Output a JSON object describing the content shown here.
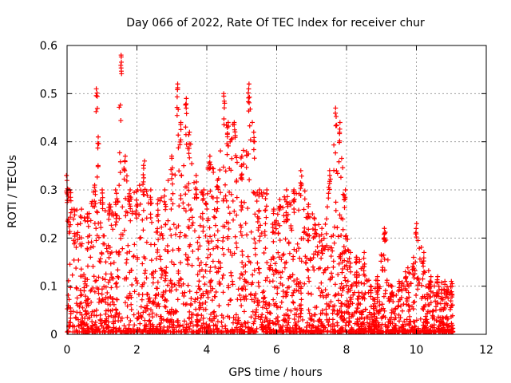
{
  "chart_data": {
    "type": "scatter",
    "title": "Day 066 of 2022, Rate Of TEC Index for receiver chur",
    "xlabel": "GPS time / hours",
    "ylabel": "ROTI / TECUs",
    "xlim": [
      0,
      12
    ],
    "ylim": [
      0,
      0.6
    ],
    "x_ticks": [
      "0",
      "2",
      "4",
      "6",
      "8",
      "10",
      "12"
    ],
    "y_ticks": [
      "0",
      "0.1",
      "0.2",
      "0.3",
      "0.4",
      "0.5",
      "0.6"
    ],
    "grid": true,
    "marker": "+",
    "series_color": "#ff0000",
    "x_range_of_data": [
      0,
      11.05
    ],
    "envelope_note": "dense cloud; upper envelope (hour, ROTI) listed below",
    "envelope": [
      [
        0.0,
        0.33
      ],
      [
        0.1,
        0.3
      ],
      [
        0.2,
        0.26
      ],
      [
        0.4,
        0.26
      ],
      [
        0.6,
        0.25
      ],
      [
        0.8,
        0.31
      ],
      [
        0.85,
        0.51
      ],
      [
        0.9,
        0.41
      ],
      [
        1.0,
        0.3
      ],
      [
        1.2,
        0.27
      ],
      [
        1.4,
        0.3
      ],
      [
        1.55,
        0.58
      ],
      [
        1.65,
        0.37
      ],
      [
        1.8,
        0.3
      ],
      [
        2.0,
        0.3
      ],
      [
        2.2,
        0.36
      ],
      [
        2.4,
        0.3
      ],
      [
        2.6,
        0.28
      ],
      [
        2.8,
        0.3
      ],
      [
        3.0,
        0.37
      ],
      [
        3.15,
        0.52
      ],
      [
        3.25,
        0.44
      ],
      [
        3.4,
        0.49
      ],
      [
        3.5,
        0.42
      ],
      [
        3.7,
        0.33
      ],
      [
        3.9,
        0.3
      ],
      [
        4.1,
        0.37
      ],
      [
        4.3,
        0.32
      ],
      [
        4.5,
        0.5
      ],
      [
        4.6,
        0.44
      ],
      [
        4.8,
        0.44
      ],
      [
        5.0,
        0.37
      ],
      [
        5.2,
        0.52
      ],
      [
        5.35,
        0.42
      ],
      [
        5.5,
        0.3
      ],
      [
        5.7,
        0.3
      ],
      [
        5.9,
        0.26
      ],
      [
        6.1,
        0.28
      ],
      [
        6.3,
        0.3
      ],
      [
        6.5,
        0.3
      ],
      [
        6.7,
        0.34
      ],
      [
        6.9,
        0.27
      ],
      [
        7.1,
        0.24
      ],
      [
        7.3,
        0.22
      ],
      [
        7.5,
        0.33
      ],
      [
        7.7,
        0.47
      ],
      [
        7.8,
        0.44
      ],
      [
        7.95,
        0.3
      ],
      [
        8.1,
        0.17
      ],
      [
        8.3,
        0.16
      ],
      [
        8.5,
        0.17
      ],
      [
        8.7,
        0.1
      ],
      [
        8.9,
        0.12
      ],
      [
        9.1,
        0.22
      ],
      [
        9.3,
        0.1
      ],
      [
        9.5,
        0.11
      ],
      [
        9.7,
        0.13
      ],
      [
        9.9,
        0.16
      ],
      [
        10.0,
        0.23
      ],
      [
        10.2,
        0.17
      ],
      [
        10.4,
        0.12
      ],
      [
        10.6,
        0.12
      ],
      [
        10.8,
        0.11
      ],
      [
        11.0,
        0.11
      ]
    ]
  }
}
